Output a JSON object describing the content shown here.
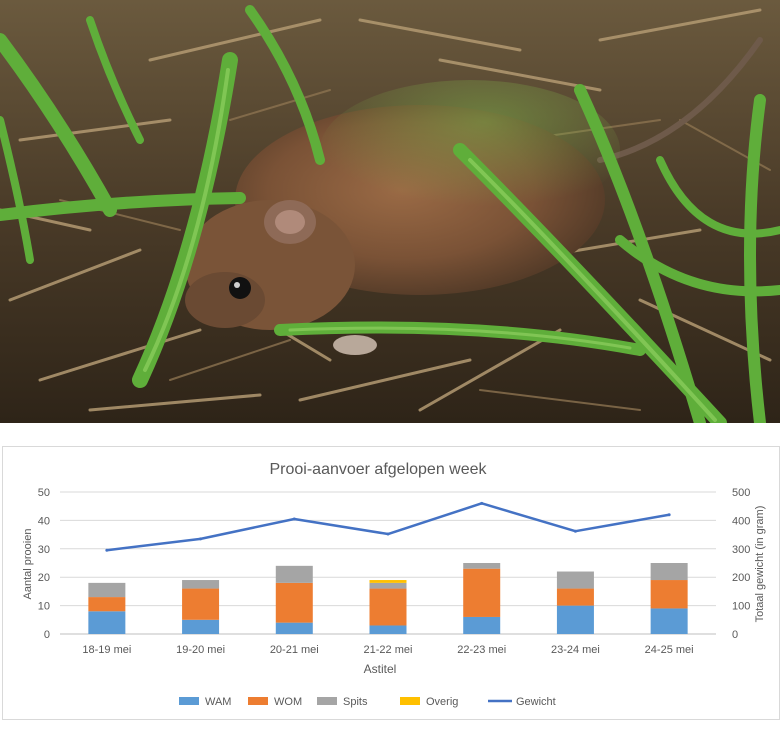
{
  "photo": {
    "subject": "vole-in-grass-photo"
  },
  "chart_data": {
    "type": "bar",
    "subtype": "stacked-bar-with-line",
    "title": "Prooi-aanvoer afgelopen week",
    "xlabel": "Astitel",
    "ylabel": "Aantal prooien",
    "y2label": "Totaal gewicht (in gram)",
    "categories": [
      "18-19 mei",
      "19-20 mei",
      "20-21 mei",
      "21-22 mei",
      "22-23 mei",
      "23-24 mei",
      "24-25 mei"
    ],
    "ylim": [
      0,
      50
    ],
    "yticks": [
      0,
      10,
      20,
      30,
      40,
      50
    ],
    "y2lim": [
      0,
      500
    ],
    "y2ticks": [
      0,
      100,
      200,
      300,
      400,
      500
    ],
    "grid": true,
    "legend_position": "bottom",
    "series": [
      {
        "name": "WAM",
        "kind": "bar",
        "color": "#5b9bd5",
        "values": [
          8,
          5,
          4,
          3,
          6,
          10,
          9
        ]
      },
      {
        "name": "WOM",
        "kind": "bar",
        "color": "#ed7d31",
        "values": [
          5,
          11,
          14,
          13,
          17,
          6,
          10
        ]
      },
      {
        "name": "Spits",
        "kind": "bar",
        "color": "#a5a5a5",
        "values": [
          5,
          3,
          6,
          2,
          2,
          6,
          6
        ]
      },
      {
        "name": "Overig",
        "kind": "bar",
        "color": "#ffc000",
        "values": [
          0,
          0,
          0,
          1,
          0,
          0,
          0
        ]
      },
      {
        "name": "Gewicht",
        "kind": "line",
        "axis": "right",
        "color": "#4472c4",
        "values": [
          295,
          335,
          405,
          352,
          460,
          362,
          420
        ]
      }
    ]
  }
}
